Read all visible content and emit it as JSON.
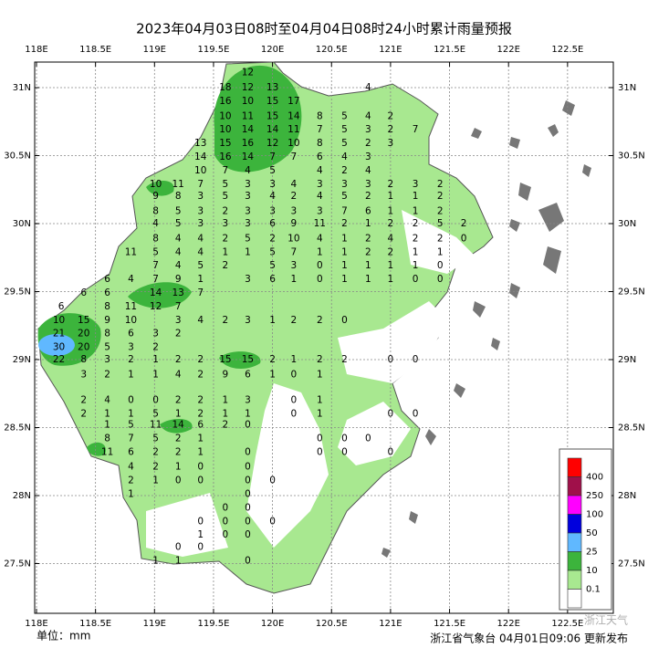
{
  "title": "2023年04月03日08时至04月04日08时24小时累计雨量预报",
  "unit_label": "单位：mm",
  "footer": "浙江省气象台 04月01日09:06 更新发布",
  "watermark": "浙江天气",
  "lon_ticks": [
    {
      "value": 118,
      "label": "118E"
    },
    {
      "value": 118.5,
      "label": "118.5E"
    },
    {
      "value": 119,
      "label": "119E"
    },
    {
      "value": 119.5,
      "label": "119.5E"
    },
    {
      "value": 120,
      "label": "120E"
    },
    {
      "value": 120.5,
      "label": "120.5E"
    },
    {
      "value": 121,
      "label": "121E"
    },
    {
      "value": 121.5,
      "label": "121.5E"
    },
    {
      "value": 122,
      "label": "122E"
    },
    {
      "value": 122.5,
      "label": "122.5E"
    }
  ],
  "lat_ticks": [
    {
      "value": 31,
      "label": "31N"
    },
    {
      "value": 30.5,
      "label": "30.5N"
    },
    {
      "value": 30,
      "label": "30N"
    },
    {
      "value": 29.5,
      "label": "29.5N"
    },
    {
      "value": 29,
      "label": "29N"
    },
    {
      "value": 28.5,
      "label": "28.5N"
    },
    {
      "value": 28,
      "label": "28N"
    },
    {
      "value": 27.5,
      "label": "27.5N"
    }
  ],
  "legend": [
    {
      "value": 400,
      "color": "#ff0000"
    },
    {
      "value": 250,
      "color": "#a0104a"
    },
    {
      "value": 100,
      "color": "#ff00ff"
    },
    {
      "value": 50,
      "color": "#0000dd"
    },
    {
      "value": 25,
      "color": "#60b8ff"
    },
    {
      "value": 10,
      "color": "#3cb43c"
    },
    {
      "value": 0.1,
      "color": "#a8e890"
    }
  ],
  "stations": [
    [
      119.79,
      31.11,
      12
    ],
    [
      119.6,
      31.0,
      18
    ],
    [
      119.79,
      31.0,
      12
    ],
    [
      120.0,
      31.0,
      13
    ],
    [
      120.81,
      31.0,
      4
    ],
    [
      119.6,
      30.9,
      16
    ],
    [
      119.79,
      30.9,
      10
    ],
    [
      120.0,
      30.9,
      15
    ],
    [
      120.18,
      30.9,
      17
    ],
    [
      119.6,
      30.79,
      10
    ],
    [
      119.79,
      30.79,
      11
    ],
    [
      120.0,
      30.79,
      15
    ],
    [
      120.18,
      30.79,
      14
    ],
    [
      120.4,
      30.79,
      8
    ],
    [
      120.61,
      30.79,
      5
    ],
    [
      120.81,
      30.79,
      4
    ],
    [
      121.0,
      30.79,
      2
    ],
    [
      119.6,
      30.69,
      10
    ],
    [
      119.79,
      30.69,
      14
    ],
    [
      120.0,
      30.69,
      14
    ],
    [
      120.18,
      30.69,
      11
    ],
    [
      120.4,
      30.69,
      7
    ],
    [
      120.61,
      30.69,
      5
    ],
    [
      120.81,
      30.69,
      3
    ],
    [
      121.0,
      30.69,
      2
    ],
    [
      121.21,
      30.69,
      7
    ],
    [
      119.39,
      30.59,
      13
    ],
    [
      119.6,
      30.59,
      15
    ],
    [
      119.79,
      30.59,
      16
    ],
    [
      120.0,
      30.59,
      12
    ],
    [
      120.18,
      30.59,
      10
    ],
    [
      120.4,
      30.59,
      8
    ],
    [
      120.61,
      30.59,
      5
    ],
    [
      120.81,
      30.59,
      2
    ],
    [
      121.0,
      30.59,
      3
    ],
    [
      119.39,
      30.49,
      14
    ],
    [
      119.6,
      30.49,
      16
    ],
    [
      119.79,
      30.49,
      14
    ],
    [
      120.0,
      30.49,
      7
    ],
    [
      120.18,
      30.49,
      7
    ],
    [
      120.4,
      30.49,
      6
    ],
    [
      120.61,
      30.49,
      4
    ],
    [
      120.81,
      30.49,
      3
    ],
    [
      119.39,
      30.39,
      10
    ],
    [
      119.6,
      30.39,
      7
    ],
    [
      119.79,
      30.39,
      4
    ],
    [
      120.0,
      30.39,
      5
    ],
    [
      120.4,
      30.39,
      4
    ],
    [
      120.61,
      30.39,
      2
    ],
    [
      120.81,
      30.39,
      4
    ],
    [
      119.01,
      30.29,
      10
    ],
    [
      119.2,
      30.29,
      11
    ],
    [
      119.39,
      30.29,
      7
    ],
    [
      119.6,
      30.29,
      5
    ],
    [
      119.79,
      30.29,
      3
    ],
    [
      120.0,
      30.29,
      3
    ],
    [
      120.18,
      30.29,
      4
    ],
    [
      120.4,
      30.29,
      3
    ],
    [
      120.61,
      30.29,
      3
    ],
    [
      120.81,
      30.29,
      3
    ],
    [
      121.0,
      30.29,
      2
    ],
    [
      121.21,
      30.29,
      3
    ],
    [
      121.42,
      30.29,
      2
    ],
    [
      119.01,
      30.2,
      9
    ],
    [
      119.2,
      30.2,
      8
    ],
    [
      119.39,
      30.2,
      3
    ],
    [
      119.6,
      30.2,
      5
    ],
    [
      119.79,
      30.2,
      3
    ],
    [
      120.0,
      30.2,
      4
    ],
    [
      120.18,
      30.2,
      2
    ],
    [
      120.4,
      30.2,
      4
    ],
    [
      120.61,
      30.2,
      5
    ],
    [
      120.81,
      30.2,
      2
    ],
    [
      121.0,
      30.2,
      1
    ],
    [
      121.21,
      30.2,
      1
    ],
    [
      121.42,
      30.2,
      2
    ],
    [
      119.01,
      30.09,
      8
    ],
    [
      119.2,
      30.09,
      5
    ],
    [
      119.39,
      30.09,
      3
    ],
    [
      119.6,
      30.09,
      2
    ],
    [
      119.79,
      30.09,
      3
    ],
    [
      120.0,
      30.09,
      3
    ],
    [
      120.18,
      30.09,
      3
    ],
    [
      120.4,
      30.09,
      3
    ],
    [
      120.61,
      30.09,
      7
    ],
    [
      120.81,
      30.09,
      6
    ],
    [
      121.0,
      30.09,
      1
    ],
    [
      121.21,
      30.09,
      1
    ],
    [
      121.42,
      30.09,
      2
    ],
    [
      119.01,
      30.0,
      4
    ],
    [
      119.2,
      30.0,
      5
    ],
    [
      119.39,
      30.0,
      3
    ],
    [
      119.6,
      30.0,
      3
    ],
    [
      119.79,
      30.0,
      3
    ],
    [
      120.0,
      30.0,
      6
    ],
    [
      120.18,
      30.0,
      9
    ],
    [
      120.4,
      30.0,
      11
    ],
    [
      120.61,
      30.0,
      2
    ],
    [
      120.81,
      30.0,
      1
    ],
    [
      121.0,
      30.0,
      2
    ],
    [
      121.21,
      30.0,
      2
    ],
    [
      121.42,
      30.0,
      5
    ],
    [
      121.62,
      30.0,
      2
    ],
    [
      119.01,
      29.89,
      8
    ],
    [
      119.2,
      29.89,
      4
    ],
    [
      119.39,
      29.89,
      4
    ],
    [
      119.6,
      29.89,
      2
    ],
    [
      119.79,
      29.89,
      5
    ],
    [
      120.0,
      29.89,
      2
    ],
    [
      120.18,
      29.89,
      10
    ],
    [
      120.4,
      29.89,
      4
    ],
    [
      120.61,
      29.89,
      1
    ],
    [
      120.81,
      29.89,
      2
    ],
    [
      121.0,
      29.89,
      4
    ],
    [
      121.21,
      29.89,
      2
    ],
    [
      121.42,
      29.89,
      2
    ],
    [
      121.62,
      29.89,
      0
    ],
    [
      118.8,
      29.79,
      11
    ],
    [
      119.01,
      29.79,
      5
    ],
    [
      119.2,
      29.79,
      4
    ],
    [
      119.39,
      29.79,
      4
    ],
    [
      119.6,
      29.79,
      1
    ],
    [
      119.79,
      29.79,
      1
    ],
    [
      120.0,
      29.79,
      5
    ],
    [
      120.18,
      29.79,
      7
    ],
    [
      120.4,
      29.79,
      1
    ],
    [
      120.61,
      29.79,
      1
    ],
    [
      120.81,
      29.79,
      2
    ],
    [
      121.0,
      29.79,
      2
    ],
    [
      121.21,
      29.79,
      1
    ],
    [
      121.42,
      29.79,
      1
    ],
    [
      119.01,
      29.69,
      7
    ],
    [
      119.2,
      29.69,
      4
    ],
    [
      119.39,
      29.69,
      5
    ],
    [
      119.6,
      29.69,
      2
    ],
    [
      120.0,
      29.69,
      5
    ],
    [
      120.18,
      29.69,
      3
    ],
    [
      120.4,
      29.69,
      0
    ],
    [
      120.61,
      29.69,
      1
    ],
    [
      120.81,
      29.69,
      1
    ],
    [
      121.0,
      29.69,
      1
    ],
    [
      121.21,
      29.69,
      1
    ],
    [
      121.42,
      29.69,
      0
    ],
    [
      118.6,
      29.59,
      6
    ],
    [
      118.8,
      29.59,
      4
    ],
    [
      119.01,
      29.59,
      7
    ],
    [
      119.2,
      29.59,
      9
    ],
    [
      119.39,
      29.59,
      1
    ],
    [
      119.79,
      29.59,
      3
    ],
    [
      120.0,
      29.59,
      6
    ],
    [
      120.18,
      29.59,
      1
    ],
    [
      120.4,
      29.59,
      0
    ],
    [
      120.61,
      29.59,
      1
    ],
    [
      120.81,
      29.59,
      1
    ],
    [
      121.0,
      29.59,
      1
    ],
    [
      121.21,
      29.59,
      0
    ],
    [
      121.42,
      29.59,
      0
    ],
    [
      118.4,
      29.49,
      6
    ],
    [
      118.6,
      29.49,
      6
    ],
    [
      119.01,
      29.49,
      14
    ],
    [
      119.2,
      29.49,
      13
    ],
    [
      119.39,
      29.49,
      7
    ],
    [
      118.21,
      29.39,
      6
    ],
    [
      118.6,
      29.39,
      8
    ],
    [
      118.8,
      29.39,
      11
    ],
    [
      119.01,
      29.39,
      12
    ],
    [
      119.2,
      29.39,
      7
    ],
    [
      118.19,
      29.29,
      10
    ],
    [
      118.4,
      29.29,
      15
    ],
    [
      118.6,
      29.29,
      9
    ],
    [
      118.8,
      29.29,
      10
    ],
    [
      119.2,
      29.29,
      3
    ],
    [
      119.39,
      29.29,
      4
    ],
    [
      119.6,
      29.29,
      2
    ],
    [
      119.79,
      29.29,
      3
    ],
    [
      120.0,
      29.29,
      1
    ],
    [
      120.18,
      29.29,
      2
    ],
    [
      120.4,
      29.29,
      2
    ],
    [
      120.61,
      29.29,
      0
    ],
    [
      118.19,
      29.19,
      21
    ],
    [
      118.4,
      29.19,
      20
    ],
    [
      118.6,
      29.19,
      8
    ],
    [
      118.8,
      29.19,
      6
    ],
    [
      119.01,
      29.19,
      3
    ],
    [
      119.2,
      29.19,
      2
    ],
    [
      118.19,
      29.09,
      30
    ],
    [
      118.4,
      29.09,
      20
    ],
    [
      118.6,
      29.09,
      5
    ],
    [
      118.8,
      29.09,
      3
    ],
    [
      119.01,
      29.09,
      2
    ],
    [
      118.19,
      29.0,
      22
    ],
    [
      118.4,
      29.0,
      8
    ],
    [
      118.6,
      29.0,
      3
    ],
    [
      118.8,
      29.0,
      2
    ],
    [
      119.01,
      29.0,
      1
    ],
    [
      119.2,
      29.0,
      2
    ],
    [
      119.39,
      29.0,
      2
    ],
    [
      119.6,
      29.0,
      15
    ],
    [
      119.79,
      29.0,
      15
    ],
    [
      120.0,
      29.0,
      2
    ],
    [
      120.18,
      29.0,
      1
    ],
    [
      120.4,
      29.0,
      2
    ],
    [
      120.61,
      29.0,
      2
    ],
    [
      121.0,
      29.0,
      0
    ],
    [
      121.21,
      29.0,
      0
    ],
    [
      118.4,
      28.89,
      3
    ],
    [
      118.6,
      28.89,
      2
    ],
    [
      118.8,
      28.89,
      1
    ],
    [
      119.01,
      28.89,
      1
    ],
    [
      119.2,
      28.89,
      4
    ],
    [
      119.39,
      28.89,
      2
    ],
    [
      119.6,
      28.89,
      9
    ],
    [
      119.79,
      28.89,
      6
    ],
    [
      120.0,
      28.89,
      1
    ],
    [
      120.18,
      28.89,
      0
    ],
    [
      120.4,
      28.89,
      1
    ],
    [
      118.4,
      28.7,
      2
    ],
    [
      118.6,
      28.7,
      4
    ],
    [
      118.8,
      28.7,
      0
    ],
    [
      119.01,
      28.7,
      0
    ],
    [
      119.2,
      28.7,
      2
    ],
    [
      119.39,
      28.7,
      2
    ],
    [
      119.6,
      28.7,
      1
    ],
    [
      119.79,
      28.7,
      3
    ],
    [
      120.18,
      28.7,
      0
    ],
    [
      120.4,
      28.7,
      1
    ],
    [
      118.4,
      28.6,
      2
    ],
    [
      118.6,
      28.6,
      1
    ],
    [
      118.8,
      28.6,
      1
    ],
    [
      119.01,
      28.6,
      5
    ],
    [
      119.2,
      28.6,
      1
    ],
    [
      119.39,
      28.6,
      2
    ],
    [
      119.6,
      28.6,
      1
    ],
    [
      119.79,
      28.6,
      1
    ],
    [
      120.18,
      28.6,
      0
    ],
    [
      120.4,
      28.6,
      1
    ],
    [
      121.0,
      28.6,
      0
    ],
    [
      121.21,
      28.6,
      0
    ],
    [
      118.6,
      28.52,
      1
    ],
    [
      118.8,
      28.52,
      5
    ],
    [
      119.01,
      28.52,
      11
    ],
    [
      119.2,
      28.52,
      14
    ],
    [
      119.39,
      28.52,
      6
    ],
    [
      119.6,
      28.52,
      2
    ],
    [
      119.79,
      28.52,
      0
    ],
    [
      118.6,
      28.42,
      8
    ],
    [
      118.8,
      28.42,
      7
    ],
    [
      119.01,
      28.42,
      5
    ],
    [
      119.2,
      28.42,
      2
    ],
    [
      119.39,
      28.42,
      1
    ],
    [
      120.4,
      28.42,
      0
    ],
    [
      120.61,
      28.42,
      0
    ],
    [
      120.81,
      28.42,
      0
    ],
    [
      118.6,
      28.32,
      11
    ],
    [
      118.8,
      28.32,
      6
    ],
    [
      119.01,
      28.32,
      2
    ],
    [
      119.2,
      28.32,
      2
    ],
    [
      119.39,
      28.32,
      1
    ],
    [
      119.79,
      28.32,
      0
    ],
    [
      120.4,
      28.32,
      0
    ],
    [
      120.61,
      28.32,
      0
    ],
    [
      121.0,
      28.32,
      0
    ],
    [
      118.8,
      28.21,
      4
    ],
    [
      119.01,
      28.21,
      2
    ],
    [
      119.2,
      28.21,
      1
    ],
    [
      119.39,
      28.21,
      0
    ],
    [
      119.79,
      28.21,
      0
    ],
    [
      118.8,
      28.11,
      2
    ],
    [
      119.01,
      28.11,
      1
    ],
    [
      119.2,
      28.11,
      0
    ],
    [
      119.39,
      28.11,
      0
    ],
    [
      119.79,
      28.11,
      0
    ],
    [
      120.0,
      28.11,
      0
    ],
    [
      118.8,
      28.01,
      1
    ],
    [
      119.79,
      28.01,
      0
    ],
    [
      119.6,
      27.91,
      0
    ],
    [
      119.79,
      27.91,
      0
    ],
    [
      119.39,
      27.81,
      0
    ],
    [
      119.6,
      27.81,
      0
    ],
    [
      119.79,
      27.81,
      0
    ],
    [
      120.0,
      27.81,
      0
    ],
    [
      119.39,
      27.71,
      1
    ],
    [
      119.6,
      27.71,
      0
    ],
    [
      119.79,
      27.71,
      0
    ],
    [
      119.2,
      27.62,
      0
    ],
    [
      119.39,
      27.62,
      0
    ],
    [
      119.01,
      27.52,
      1
    ],
    [
      119.2,
      27.52,
      1
    ],
    [
      119.79,
      27.52,
      0
    ]
  ]
}
